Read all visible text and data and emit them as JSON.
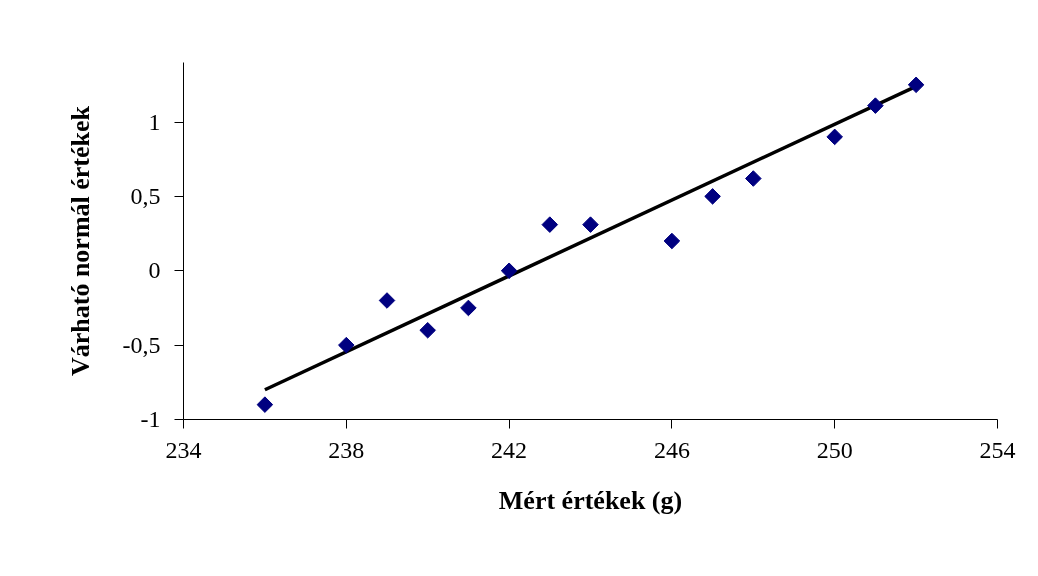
{
  "chart_data": {
    "type": "scatter",
    "xlabel": "Mért értékek (g)",
    "ylabel": "Várható normál értékek",
    "xlim": [
      234,
      254
    ],
    "xticks": [
      234,
      238,
      242,
      246,
      250,
      254
    ],
    "ylim": [
      -1,
      1.4
    ],
    "yticks": [
      {
        "value": -1,
        "label": "-1"
      },
      {
        "value": -0.5,
        "label": "-0,5"
      },
      {
        "value": 0,
        "label": "0"
      },
      {
        "value": 0.5,
        "label": "0,5"
      },
      {
        "value": 1,
        "label": "1"
      }
    ],
    "grid": false,
    "marker": "diamond",
    "series": [
      {
        "color": "#000080",
        "x": [
          236,
          238,
          239,
          240,
          241,
          242,
          243,
          244,
          246,
          247,
          248,
          250,
          251,
          252
        ],
        "values": [
          -0.9,
          -0.5,
          -0.2,
          -0.4,
          -0.25,
          0,
          0.31,
          0.31,
          0.2,
          0.5,
          0.62,
          0.9,
          1.11,
          1.25
        ]
      },
      {
        "type": "line",
        "color": "#000000",
        "line_style": "solid",
        "marker": "none",
        "x": [
          236,
          252
        ],
        "values": [
          -0.8,
          1.24
        ]
      }
    ]
  }
}
